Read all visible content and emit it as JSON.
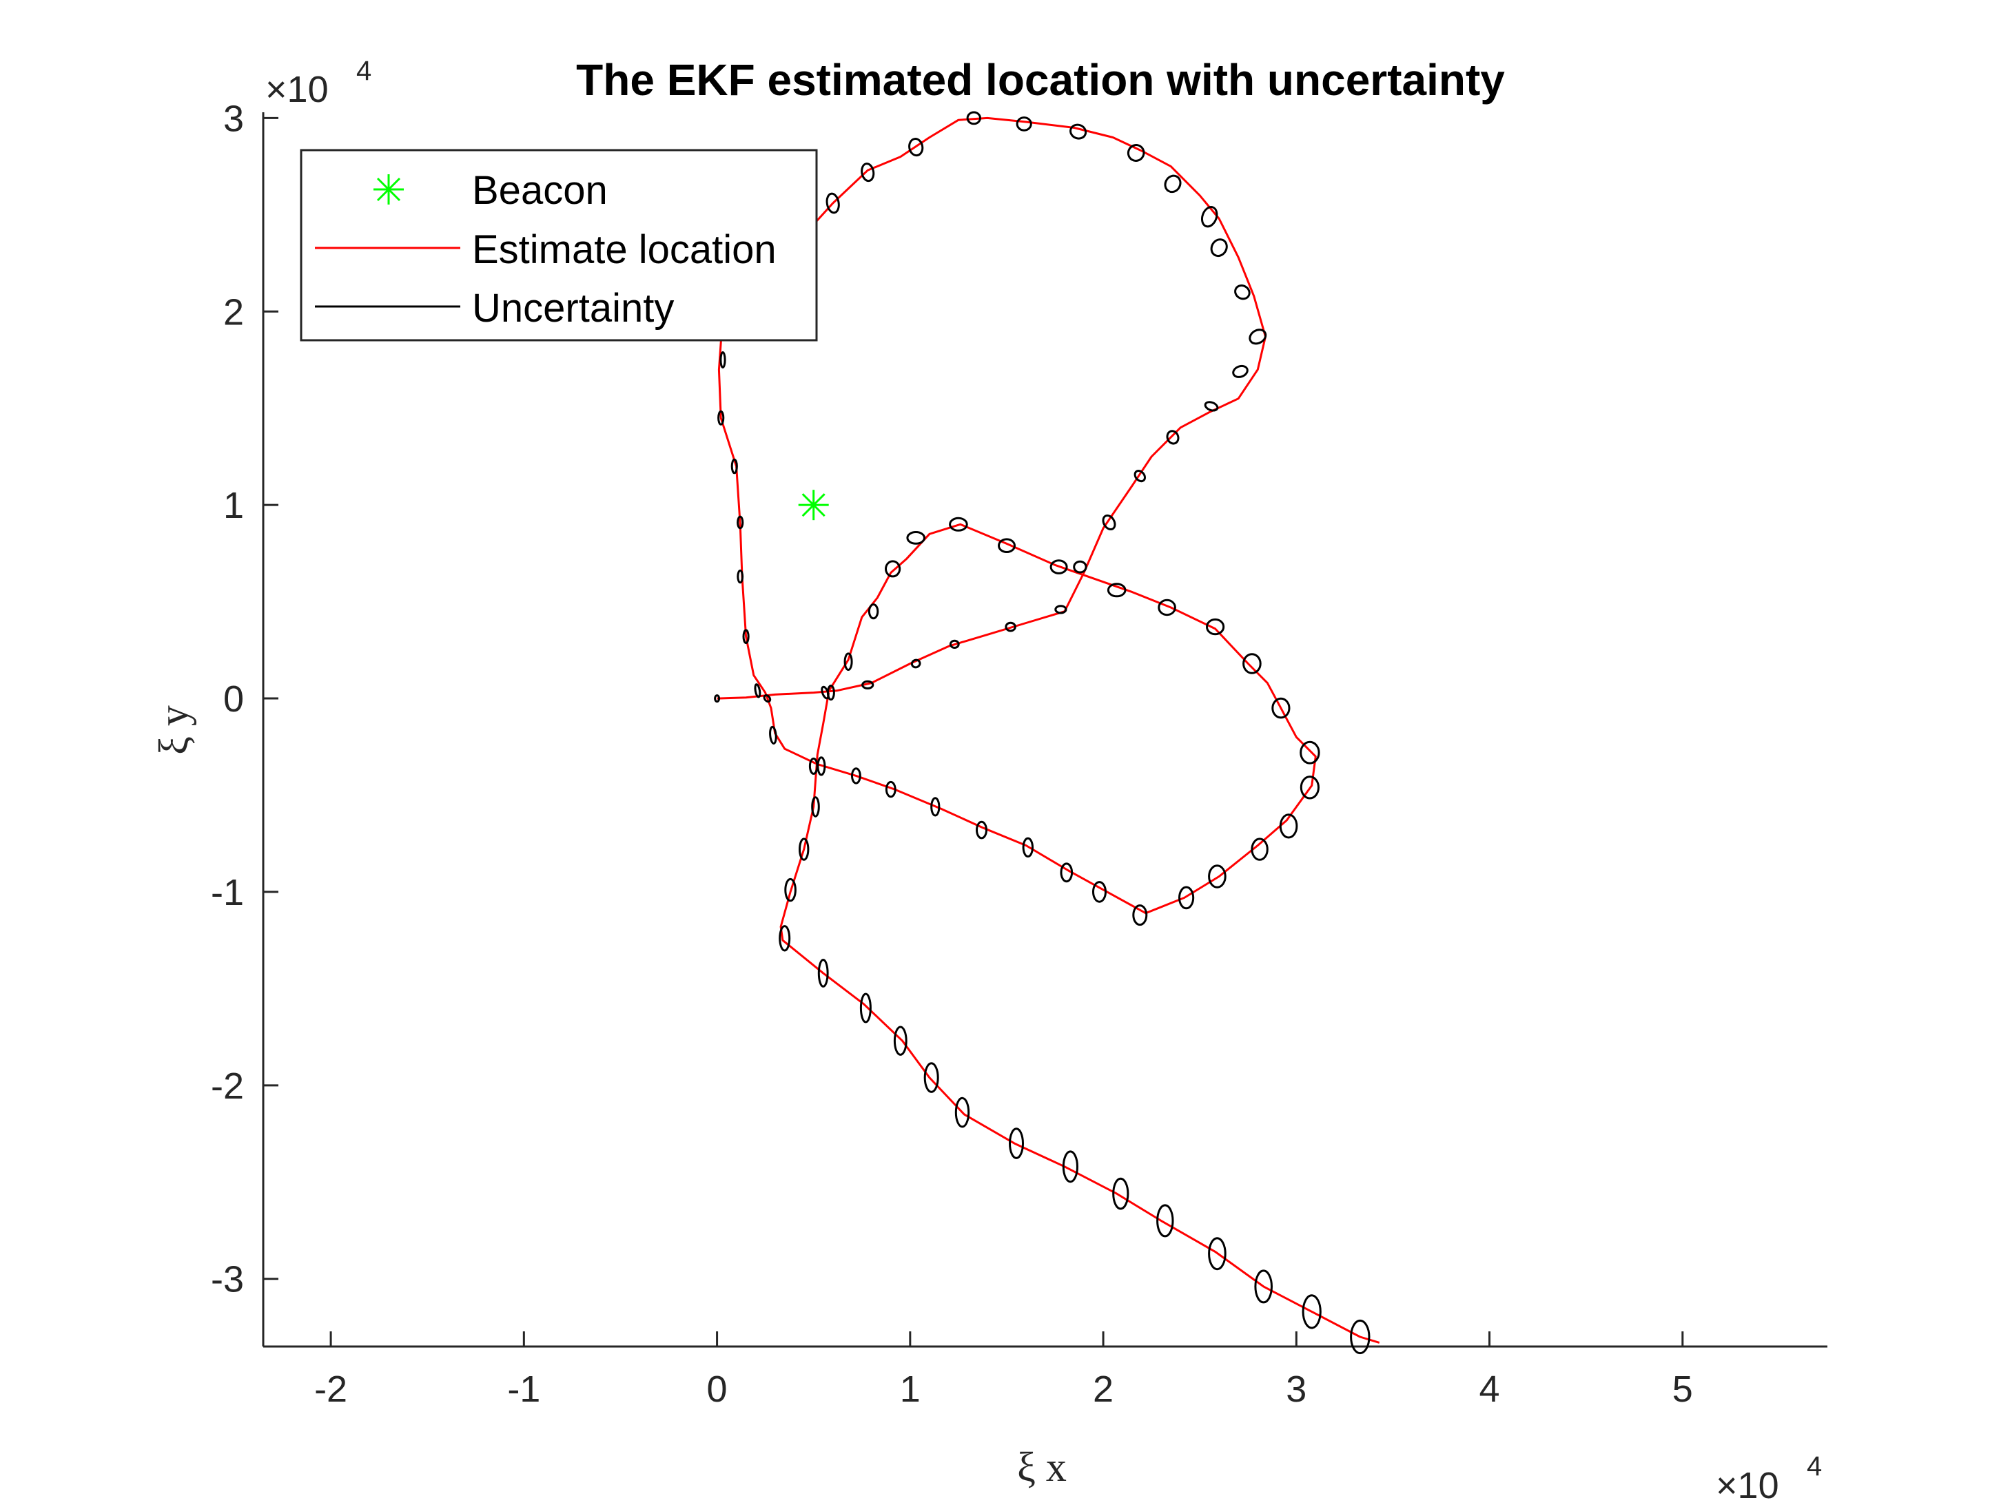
{
  "chart_data": {
    "type": "line",
    "title": "The EKF estimated location with uncertainty",
    "xlabel": "ξ x",
    "ylabel": "ξ y",
    "x_multiplier": "×10",
    "x_multiplier_exp": "4",
    "y_multiplier": "×10",
    "y_multiplier_exp": "4",
    "xlim": [
      -23500,
      57500
    ],
    "ylim": [
      -33500,
      30300
    ],
    "xticks": [
      -20000,
      -10000,
      0,
      10000,
      20000,
      30000,
      40000,
      50000
    ],
    "xtick_labels": [
      "-2",
      "-1",
      "0",
      "1",
      "2",
      "3",
      "4",
      "5"
    ],
    "yticks": [
      -30000,
      -20000,
      -10000,
      0,
      10000,
      20000,
      30000
    ],
    "ytick_labels": [
      "-3",
      "-2",
      "-1",
      "0",
      "1",
      "2",
      "3"
    ],
    "grid": false,
    "legend_position": "top-left",
    "colors": {
      "beacon": "#00ff00",
      "estimate": "#ff0000",
      "uncertainty": "#000000"
    },
    "series": [
      {
        "name": "Beacon",
        "type": "scatter",
        "marker": "asterisk",
        "points": [
          [
            5000,
            10000
          ]
        ]
      },
      {
        "name": "Estimate location",
        "type": "line",
        "points": [
          [
            0,
            0
          ],
          [
            1500,
            50
          ],
          [
            3000,
            200
          ],
          [
            5000,
            300
          ],
          [
            6200,
            400
          ],
          [
            8000,
            800
          ],
          [
            10000,
            1800
          ],
          [
            12000,
            2700
          ],
          [
            14000,
            3300
          ],
          [
            16000,
            3900
          ],
          [
            18000,
            4500
          ],
          [
            19000,
            6500
          ],
          [
            20000,
            8800
          ],
          [
            21500,
            11000
          ],
          [
            22500,
            12500
          ],
          [
            24000,
            14000
          ],
          [
            25500,
            14800
          ],
          [
            27000,
            15500
          ],
          [
            28000,
            17000
          ],
          [
            28400,
            18700
          ],
          [
            27800,
            20800
          ],
          [
            27000,
            22800
          ],
          [
            26000,
            24800
          ],
          [
            25000,
            26000
          ],
          [
            23500,
            27500
          ],
          [
            22000,
            28300
          ],
          [
            20500,
            29000
          ],
          [
            18500,
            29500
          ],
          [
            16000,
            29800
          ],
          [
            14000,
            30000
          ],
          [
            12500,
            29900
          ],
          [
            11000,
            29000
          ],
          [
            9500,
            28000
          ],
          [
            7800,
            27300
          ],
          [
            6000,
            25600
          ],
          [
            5000,
            24500
          ],
          [
            300,
            19800
          ],
          [
            100,
            17000
          ],
          [
            200,
            14500
          ],
          [
            1000,
            12000
          ],
          [
            1200,
            9000
          ],
          [
            1300,
            6300
          ],
          [
            1500,
            3200
          ],
          [
            1900,
            1200
          ],
          [
            2500,
            300
          ],
          [
            2800,
            -500
          ],
          [
            3000,
            -1800
          ],
          [
            3500,
            -2600
          ],
          [
            5200,
            -3400
          ],
          [
            7200,
            -4000
          ],
          [
            9200,
            -4700
          ],
          [
            11600,
            -5700
          ],
          [
            13800,
            -6700
          ],
          [
            16000,
            -7600
          ],
          [
            18200,
            -8900
          ],
          [
            20200,
            -10000
          ],
          [
            22200,
            -11100
          ],
          [
            24200,
            -10300
          ],
          [
            26000,
            -9200
          ],
          [
            28000,
            -7600
          ],
          [
            29500,
            -6300
          ],
          [
            30800,
            -4500
          ],
          [
            31000,
            -3000
          ],
          [
            30000,
            -2000
          ],
          [
            29200,
            -500
          ],
          [
            28500,
            800
          ],
          [
            27500,
            1800
          ],
          [
            25800,
            3600
          ],
          [
            23500,
            4700
          ],
          [
            21500,
            5500
          ],
          [
            19500,
            6200
          ],
          [
            17500,
            6900
          ],
          [
            15000,
            8000
          ],
          [
            12600,
            9000
          ],
          [
            11000,
            8500
          ],
          [
            9800,
            7200
          ],
          [
            9000,
            6500
          ],
          [
            8300,
            5200
          ],
          [
            7500,
            4200
          ],
          [
            6800,
            2000
          ],
          [
            5800,
            400
          ],
          [
            5500,
            -1300
          ],
          [
            5200,
            -2900
          ],
          [
            5000,
            -5600
          ],
          [
            4500,
            -7800
          ],
          [
            3800,
            -10000
          ],
          [
            3300,
            -11800
          ],
          [
            3400,
            -12500
          ],
          [
            5500,
            -14200
          ],
          [
            7600,
            -15800
          ],
          [
            9600,
            -17700
          ],
          [
            11000,
            -19600
          ],
          [
            12800,
            -21500
          ],
          [
            15400,
            -23000
          ],
          [
            18000,
            -24200
          ],
          [
            20700,
            -25600
          ],
          [
            23000,
            -27000
          ],
          [
            25800,
            -28600
          ],
          [
            28300,
            -30400
          ],
          [
            30800,
            -31700
          ],
          [
            33300,
            -33000
          ],
          [
            34300,
            -33300
          ]
        ]
      },
      {
        "name": "Uncertainty",
        "type": "ellipse",
        "ellipses": [
          [
            0,
            0,
            90,
            160,
            0
          ],
          [
            2100,
            400,
            110,
            330,
            10
          ],
          [
            2600,
            0,
            130,
            180,
            40
          ],
          [
            2900,
            -1900,
            150,
            430,
            5
          ],
          [
            5600,
            300,
            140,
            310,
            20
          ],
          [
            7800,
            700,
            270,
            180,
            0
          ],
          [
            10300,
            1800,
            210,
            190,
            20
          ],
          [
            12300,
            2800,
            210,
            180,
            0
          ],
          [
            15200,
            3700,
            240,
            210,
            0
          ],
          [
            17800,
            4600,
            270,
            180,
            0
          ],
          [
            18800,
            6800,
            310,
            280,
            0
          ],
          [
            20300,
            9100,
            270,
            380,
            30
          ],
          [
            21900,
            11500,
            220,
            300,
            40
          ],
          [
            23600,
            13500,
            280,
            330,
            20
          ],
          [
            25600,
            15100,
            330,
            200,
            -20
          ],
          [
            27100,
            16900,
            380,
            270,
            20
          ],
          [
            28000,
            18700,
            430,
            330,
            30
          ],
          [
            27200,
            21000,
            380,
            330,
            -30
          ],
          [
            26000,
            23300,
            380,
            440,
            -30
          ],
          [
            25500,
            24900,
            360,
            520,
            -20
          ],
          [
            23600,
            26600,
            380,
            430,
            -30
          ],
          [
            21700,
            28200,
            400,
            410,
            -30
          ],
          [
            18700,
            29300,
            400,
            350,
            -20
          ],
          [
            15900,
            29700,
            360,
            330,
            0
          ],
          [
            13300,
            30000,
            330,
            300,
            0
          ],
          [
            10300,
            28500,
            340,
            430,
            10
          ],
          [
            7800,
            27200,
            300,
            450,
            10
          ],
          [
            6000,
            25600,
            300,
            500,
            10
          ],
          [
            300,
            17500,
            110,
            390,
            0
          ],
          [
            200,
            14500,
            130,
            340,
            0
          ],
          [
            900,
            12000,
            130,
            350,
            0
          ],
          [
            1200,
            9100,
            130,
            300,
            0
          ],
          [
            1200,
            6300,
            120,
            310,
            0
          ],
          [
            1500,
            3200,
            130,
            330,
            0
          ],
          [
            5400,
            6700,
            0,
            0,
            0
          ],
          [
            5000,
            -3500,
            190,
            390,
            0
          ],
          [
            7200,
            -4000,
            210,
            380,
            0
          ],
          [
            9000,
            -4700,
            230,
            380,
            0
          ],
          [
            11300,
            -5600,
            200,
            450,
            0
          ],
          [
            13700,
            -6800,
            250,
            420,
            0
          ],
          [
            16100,
            -7700,
            240,
            470,
            0
          ],
          [
            18100,
            -9000,
            280,
            460,
            0
          ],
          [
            19800,
            -10000,
            320,
            510,
            0
          ],
          [
            21900,
            -11200,
            340,
            500,
            0
          ],
          [
            24300,
            -10300,
            360,
            550,
            0
          ],
          [
            25900,
            -9200,
            420,
            560,
            0
          ],
          [
            28100,
            -7800,
            400,
            540,
            0
          ],
          [
            29600,
            -6600,
            420,
            590,
            0
          ],
          [
            30700,
            -4600,
            450,
            560,
            0
          ],
          [
            30700,
            -2800,
            470,
            550,
            0
          ],
          [
            29200,
            -500,
            430,
            490,
            0
          ],
          [
            27700,
            1800,
            440,
            490,
            0
          ],
          [
            25800,
            3700,
            430,
            380,
            0
          ],
          [
            23300,
            4700,
            420,
            380,
            0
          ],
          [
            20700,
            5600,
            440,
            320,
            0
          ],
          [
            17700,
            6800,
            410,
            330,
            0
          ],
          [
            15000,
            7900,
            410,
            330,
            0
          ],
          [
            12500,
            9000,
            440,
            320,
            0
          ],
          [
            10300,
            8300,
            440,
            300,
            0
          ],
          [
            9100,
            6700,
            360,
            390,
            0
          ],
          [
            8100,
            4500,
            220,
            360,
            0
          ],
          [
            6800,
            1900,
            180,
            420,
            0
          ],
          [
            5900,
            300,
            160,
            360,
            0
          ],
          [
            5400,
            -3500,
            180,
            450,
            0
          ],
          [
            5100,
            -5600,
            170,
            490,
            0
          ],
          [
            4500,
            -7800,
            220,
            540,
            0
          ],
          [
            3800,
            -9900,
            260,
            560,
            0
          ],
          [
            3500,
            -12400,
            250,
            630,
            0
          ],
          [
            5500,
            -14200,
            230,
            690,
            0
          ],
          [
            7700,
            -16000,
            250,
            730,
            0
          ],
          [
            9500,
            -17700,
            300,
            720,
            0
          ],
          [
            11100,
            -19600,
            340,
            740,
            0
          ],
          [
            12700,
            -21400,
            330,
            740,
            0
          ],
          [
            15500,
            -23000,
            340,
            760,
            0
          ],
          [
            18300,
            -24200,
            360,
            780,
            0
          ],
          [
            20900,
            -25600,
            380,
            780,
            0
          ],
          [
            23200,
            -27000,
            400,
            800,
            0
          ],
          [
            25900,
            -28700,
            420,
            800,
            0
          ],
          [
            28300,
            -30400,
            420,
            820,
            0
          ],
          [
            30800,
            -31700,
            450,
            840,
            0
          ],
          [
            33300,
            -33000,
            470,
            840,
            0
          ]
        ]
      }
    ]
  },
  "legend": {
    "items": [
      {
        "label": "Beacon"
      },
      {
        "label": "Estimate location"
      },
      {
        "label": "Uncertainty"
      }
    ]
  }
}
